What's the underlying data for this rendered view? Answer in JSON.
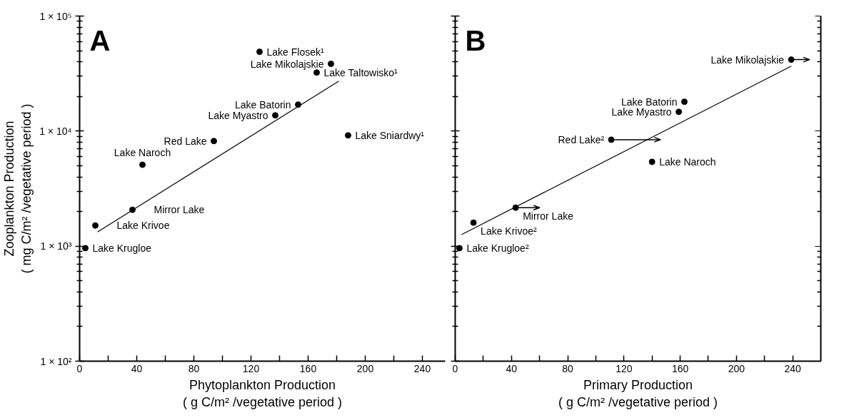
{
  "chart_data": [
    {
      "type": "scatter",
      "title": "A",
      "xlabel": "Phytoplankton Production\n( g C/m² /vegetative period )",
      "ylabel": "Zooplankton Production\n( mg C/m² /vegetative period )",
      "log": "y",
      "grid": false,
      "line_style": "solid",
      "xlim": [
        0,
        256
      ],
      "ylim": [
        100,
        100000
      ],
      "xticks": [
        0,
        {
          "value": 20,
          "label": null
        },
        40,
        {
          "value": 60,
          "label": null
        },
        80,
        {
          "value": 100,
          "label": null
        },
        120,
        {
          "value": 140,
          "label": null
        },
        160,
        {
          "value": 180,
          "label": null
        },
        200,
        {
          "value": 220,
          "label": null
        },
        240
      ],
      "yticks": [
        {
          "value": 100,
          "label": "1 × 10²"
        },
        {
          "value": 1000,
          "label": "1 × 10³"
        },
        {
          "value": 10000,
          "label": "1 × 10⁴"
        },
        {
          "value": 100000,
          "label": "1 × 10⁵"
        }
      ],
      "series": [
        {
          "marker": "circle",
          "color": "#000000",
          "x": [
            4,
            11,
            37,
            44,
            94,
            137,
            153,
            166,
            176,
            126,
            188
          ],
          "values": [
            960,
            1510,
            2070,
            5100,
            8190,
            13700,
            17000,
            32300,
            38400,
            48900,
            9180
          ]
        },
        {
          "type": "line",
          "color": "#000000",
          "x": [
            12.6,
            181.5
          ],
          "values": [
            1330,
            27200
          ]
        }
      ],
      "annotations": [
        {
          "text": "Lake Krugloe",
          "x": 4,
          "y": 960
        },
        {
          "text": "Lake Krivoe",
          "x": 11,
          "y": 1510
        },
        {
          "text": "Mirror Lake",
          "x": 37,
          "y": 2070
        },
        {
          "text": "Lake Naroch",
          "x": 44,
          "y": 5100
        },
        {
          "text": "Red Lake",
          "x": 94,
          "y": 8190
        },
        {
          "text": "Lake Myastro",
          "x": 137,
          "y": 13700
        },
        {
          "text": "Lake Batorin",
          "x": 153,
          "y": 17000
        },
        {
          "text": "Lake Taltowisko¹",
          "x": 166,
          "y": 32300
        },
        {
          "text": "Lake Mikolajskie",
          "x": 176,
          "y": 38400
        },
        {
          "text": "Lake Flosek¹",
          "x": 126,
          "y": 48900
        },
        {
          "text": "Lake Sniardwy¹",
          "x": 188,
          "y": 9180
        }
      ]
    },
    {
      "type": "scatter",
      "title": "B",
      "xlabel": "Primary Production\n( g C/m² /vegetative period )",
      "log": "y",
      "grid": false,
      "line_style": "solid",
      "tick_labels": "x",
      "xlim": [
        0,
        260
      ],
      "ylim": [
        100,
        100000
      ],
      "xticks": [
        0,
        {
          "value": 20,
          "label": null
        },
        40,
        {
          "value": 60,
          "label": null
        },
        80,
        {
          "value": 100,
          "label": null
        },
        120,
        {
          "value": 140,
          "label": null
        },
        160,
        {
          "value": 180,
          "label": null
        },
        200,
        {
          "value": 220,
          "label": null
        },
        240
      ],
      "yticks": [
        100,
        1000,
        10000,
        100000
      ],
      "series": [
        {
          "marker": "circle",
          "color": "#000000",
          "x": [
            3,
            13,
            43,
            111,
            140,
            159,
            163,
            239
          ],
          "values": [
            960,
            1600,
            2160,
            8420,
            5410,
            14700,
            18000,
            41800
          ],
          "xerrors": [
            null,
            null,
            [
              43,
              60
            ],
            [
              111,
              146
            ],
            null,
            null,
            null,
            [
              239,
              252
            ]
          ]
        },
        {
          "type": "line",
          "color": "#000000",
          "x": [
            4.5,
            239
          ],
          "values": [
            1260,
            36700
          ]
        }
      ],
      "annotations": [
        {
          "text": "Lake Krugloe²",
          "x": 3,
          "y": 960
        },
        {
          "text": "Lake Krivoe²",
          "x": 13,
          "y": 1600
        },
        {
          "text": "Mirror Lake",
          "x": 43,
          "y": 2160
        },
        {
          "text": "Red Lake²",
          "x": 111,
          "y": 8420
        },
        {
          "text": "Lake Naroch",
          "x": 140,
          "y": 5410
        },
        {
          "text": "Lake Myastro",
          "x": 159,
          "y": 14700
        },
        {
          "text": "Lake Batorin",
          "x": 163,
          "y": 18000
        },
        {
          "text": "Lake Mikolajskie",
          "x": 239,
          "y": 41800
        }
      ]
    }
  ]
}
